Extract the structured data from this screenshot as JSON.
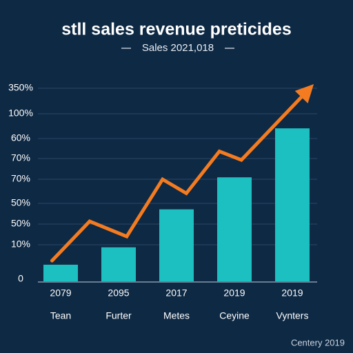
{
  "chart_data": {
    "type": "combo",
    "title": "stll sales revenue preticides",
    "subtitle": "Sales 2021,018",
    "y_axis_labels": [
      "350%",
      "100%",
      "60%",
      "70%",
      "70%",
      "50%",
      "50%",
      "10%",
      "0"
    ],
    "categories": [
      "2079",
      "2095",
      "2017",
      "2019",
      "2019"
    ],
    "category_names": [
      "Tean",
      "Furter",
      "Metes",
      "Ceyine",
      "Vynters"
    ],
    "xlim": [
      -0.5,
      4.5
    ],
    "ylim": [
      0,
      100
    ],
    "series": [
      {
        "type": "bar",
        "color": "#1cc0c0",
        "values": [
          8.3,
          17,
          36,
          52,
          76.5
        ]
      },
      {
        "type": "line",
        "color": "#f47b20",
        "x": [
          -0.15,
          0.5,
          1.14,
          1.76,
          2.17,
          2.74,
          3.12,
          4.37
        ],
        "values": [
          10.3,
          30,
          22.4,
          51,
          44,
          65,
          60.7,
          98.6
        ]
      }
    ],
    "footer": "Centery 2019"
  }
}
